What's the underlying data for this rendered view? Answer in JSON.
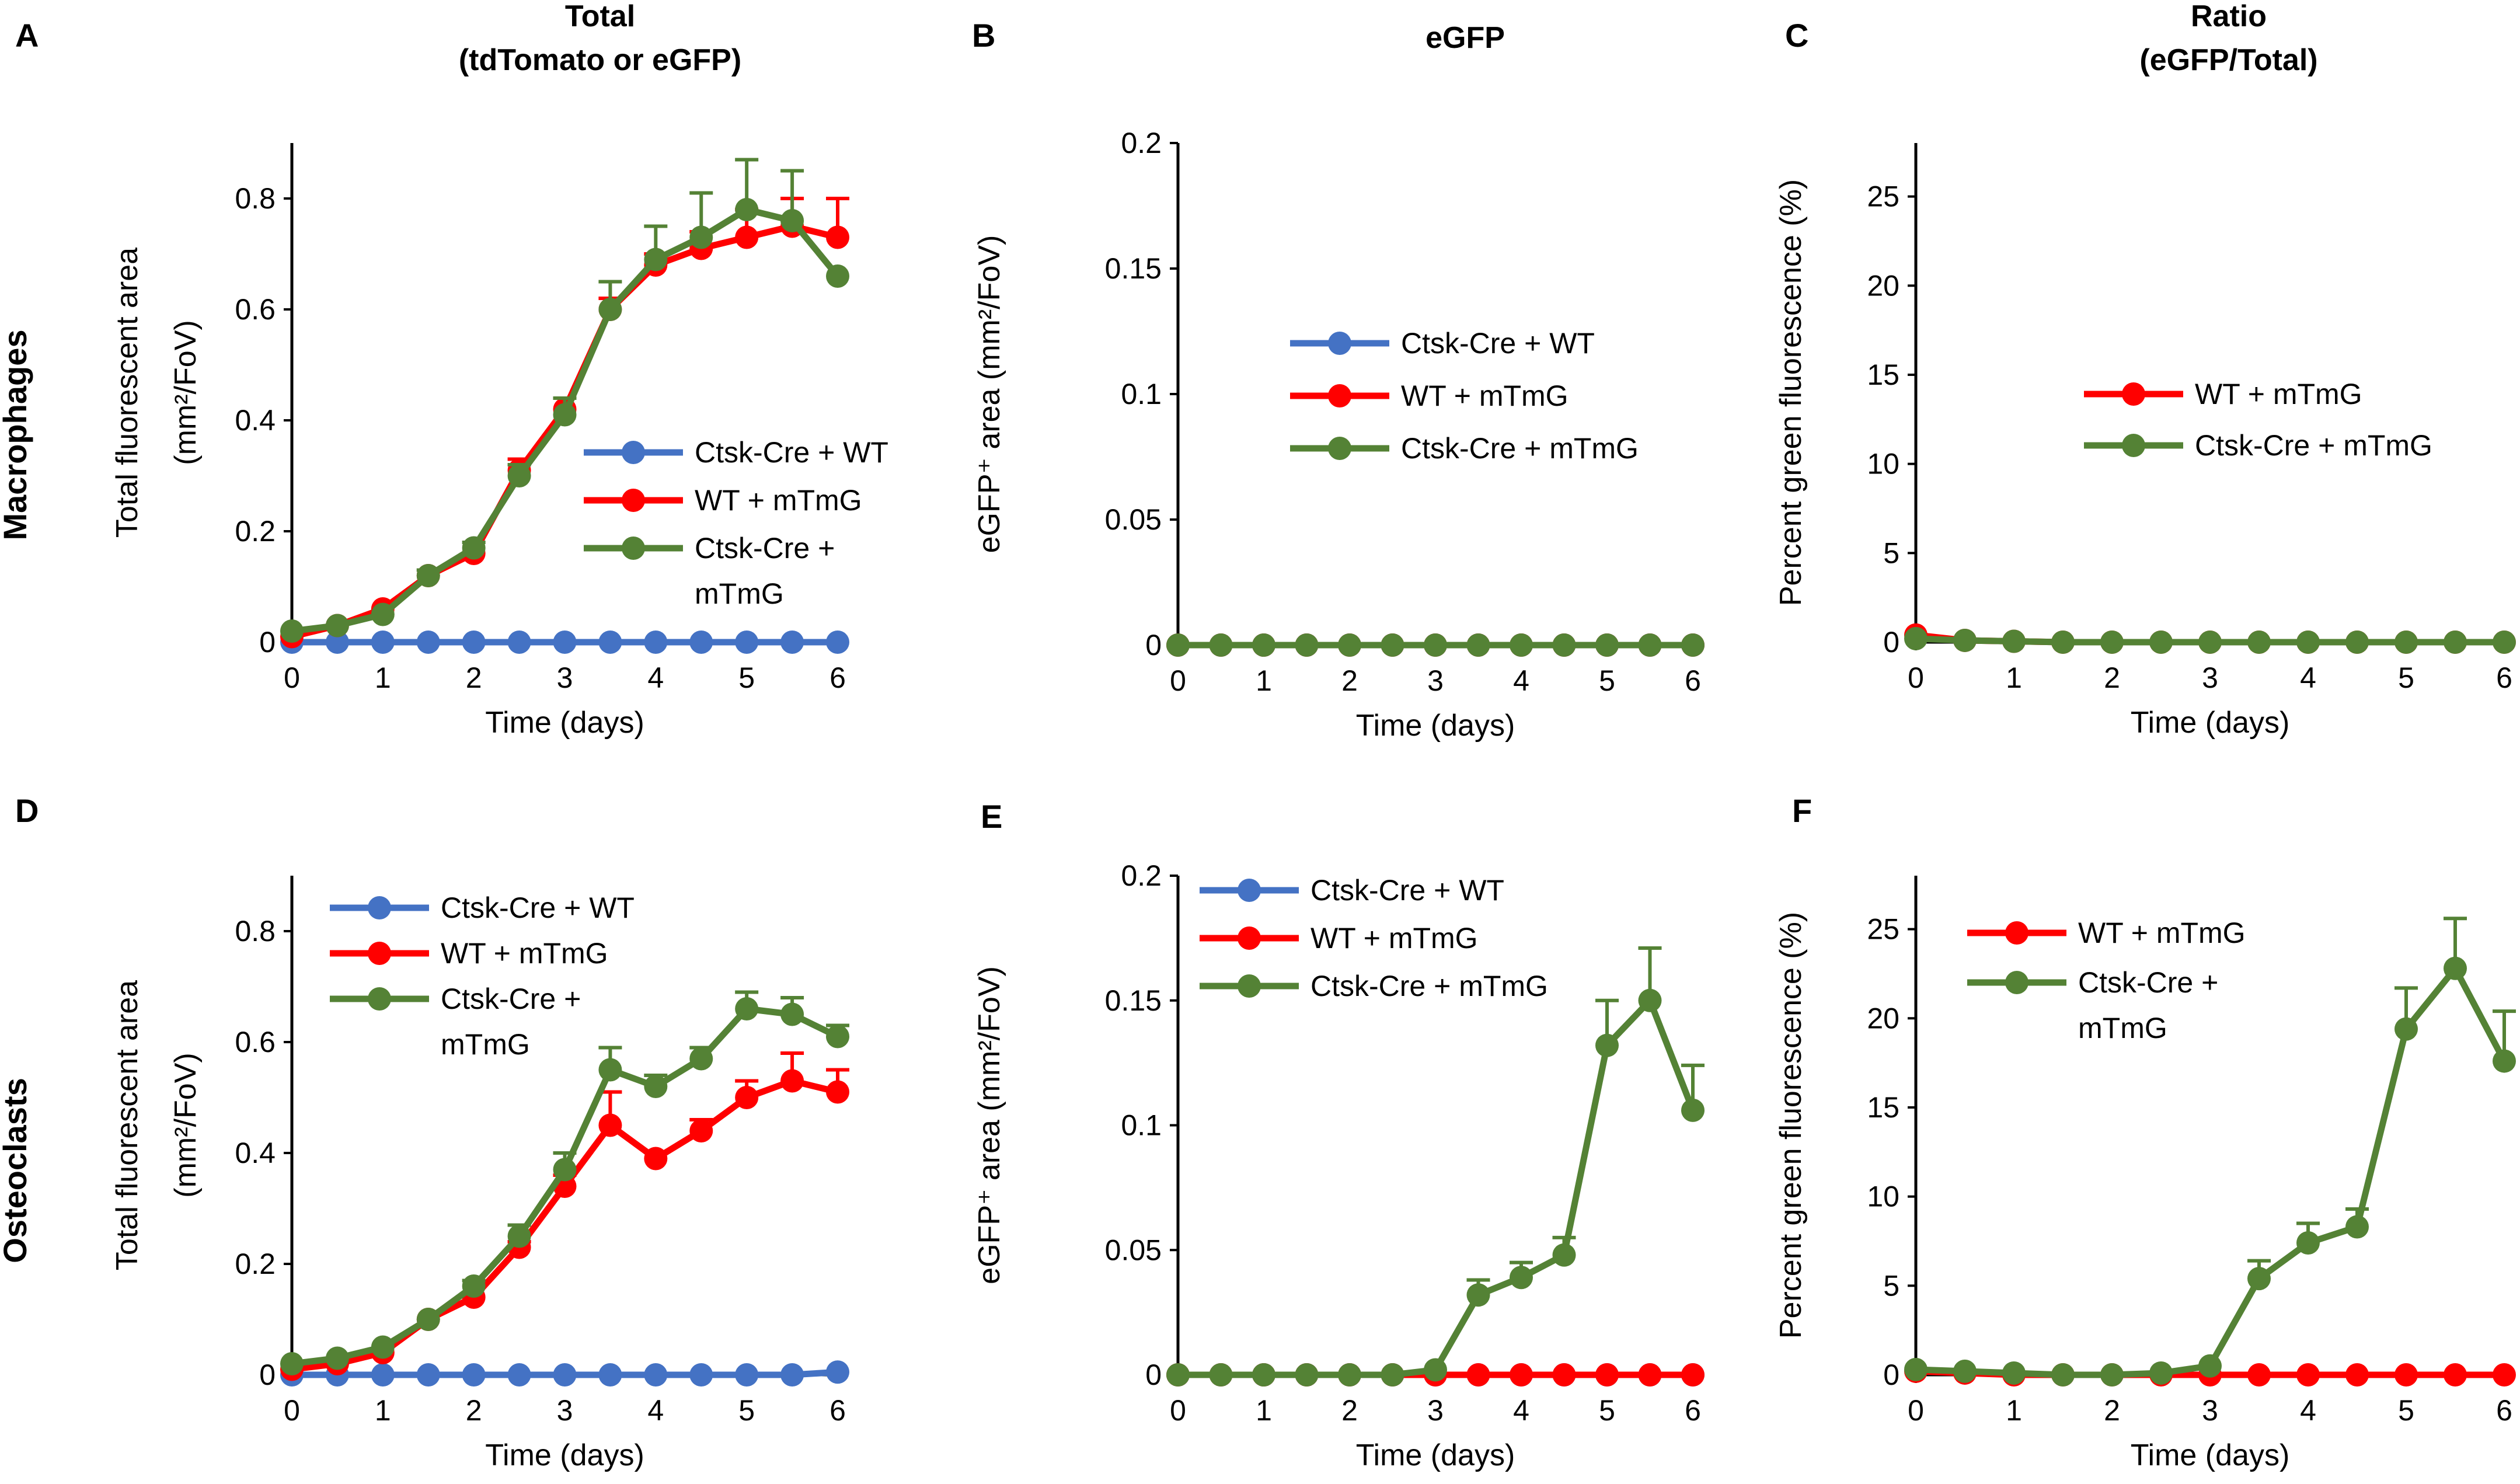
{
  "column_titles": {
    "total": [
      "Total",
      "(tdTomato or eGFP)"
    ],
    "egfp": [
      "eGFP"
    ],
    "ratio": [
      "Ratio",
      "(eGFP/Total)"
    ]
  },
  "row_labels": {
    "top": "Macrophages",
    "bottom": "Osteoclasts"
  },
  "colors": {
    "blue": "#4472C4",
    "red": "#FF0000",
    "green": "#548235"
  },
  "chart_data": [
    {
      "panel": "A",
      "type": "line",
      "row": "Macrophages",
      "column": "total",
      "xlabel": "Time (days)",
      "ylabel_lines": [
        "Total fluorescent area",
        "(mm²/FoV)"
      ],
      "xlim": [
        0,
        6
      ],
      "xticks": [
        "0",
        "1",
        "2",
        "3",
        "4",
        "5",
        "6"
      ],
      "ylim": [
        0,
        0.9
      ],
      "yticks": [
        "0",
        "0.2",
        "0.4",
        "0.6",
        "0.8"
      ],
      "ytick_values": [
        0,
        0.2,
        0.4,
        0.6,
        0.8
      ],
      "legend_position": "center-right",
      "x": [
        0,
        0.5,
        1,
        1.5,
        2,
        2.5,
        3,
        3.5,
        4,
        4.5,
        5,
        5.5,
        6
      ],
      "series": [
        {
          "name_lines": [
            "Ctsk-Cre + WT"
          ],
          "color": "blue",
          "values": [
            0,
            0,
            0,
            0,
            0,
            0,
            0,
            0,
            0,
            0,
            0,
            0,
            0
          ],
          "errors": [
            0,
            0,
            0,
            0,
            0,
            0,
            0,
            0,
            0,
            0,
            0,
            0,
            0
          ]
        },
        {
          "name_lines": [
            "WT + mTmG"
          ],
          "color": "red",
          "values": [
            0.01,
            0.03,
            0.06,
            0.12,
            0.16,
            0.31,
            0.42,
            0.6,
            0.68,
            0.71,
            0.73,
            0.75,
            0.73
          ],
          "errors": [
            0,
            0,
            0,
            0,
            0,
            0.02,
            0.02,
            0.02,
            0.02,
            0.03,
            0.05,
            0.05,
            0.07
          ]
        },
        {
          "name_lines": [
            "Ctsk-Cre +",
            "mTmG"
          ],
          "color": "green",
          "values": [
            0.02,
            0.03,
            0.05,
            0.12,
            0.17,
            0.3,
            0.41,
            0.6,
            0.69,
            0.73,
            0.78,
            0.76,
            0.66
          ],
          "errors": [
            0,
            0,
            0,
            0.01,
            0.01,
            0.02,
            0.03,
            0.05,
            0.06,
            0.08,
            0.09,
            0.09,
            0
          ]
        }
      ]
    },
    {
      "panel": "B",
      "type": "line",
      "row": "Macrophages",
      "column": "egfp",
      "xlabel": "Time (days)",
      "ylabel_lines": [
        "eGFP⁺ area (mm²/FoV)"
      ],
      "xlim": [
        0,
        6
      ],
      "xticks": [
        "0",
        "1",
        "2",
        "3",
        "4",
        "5",
        "6"
      ],
      "ylim": [
        0,
        0.2
      ],
      "yticks": [
        "0",
        "0.05",
        "0.1",
        "0.15",
        "0.2"
      ],
      "ytick_values": [
        0,
        0.05,
        0.1,
        0.15,
        0.2
      ],
      "legend_position": "center",
      "x": [
        0,
        0.5,
        1,
        1.5,
        2,
        2.5,
        3,
        3.5,
        4,
        4.5,
        5,
        5.5,
        6
      ],
      "series": [
        {
          "name_lines": [
            "Ctsk-Cre + WT"
          ],
          "color": "blue",
          "values": [
            0,
            0,
            0,
            0,
            0,
            0,
            0,
            0,
            0,
            0,
            0,
            0,
            0
          ],
          "errors": [
            0,
            0,
            0,
            0,
            0,
            0,
            0,
            0,
            0,
            0,
            0,
            0,
            0
          ]
        },
        {
          "name_lines": [
            "WT + mTmG"
          ],
          "color": "red",
          "values": [
            0,
            0,
            0,
            0,
            0,
            0,
            0,
            0,
            0,
            0,
            0,
            0,
            0
          ],
          "errors": [
            0,
            0,
            0,
            0,
            0,
            0,
            0,
            0,
            0,
            0,
            0,
            0,
            0
          ]
        },
        {
          "name_lines": [
            "Ctsk-Cre + mTmG"
          ],
          "color": "green",
          "values": [
            0,
            0,
            0,
            0,
            0,
            0,
            0,
            0,
            0,
            0,
            0,
            0,
            0
          ],
          "errors": [
            0,
            0,
            0,
            0,
            0,
            0,
            0,
            0,
            0,
            0,
            0,
            0,
            0
          ]
        }
      ]
    },
    {
      "panel": "C",
      "type": "line",
      "row": "Macrophages",
      "column": "ratio",
      "xlabel": "Time (days)",
      "ylabel_lines": [
        "Percent green fluorescence (%)"
      ],
      "xlim": [
        0,
        6
      ],
      "xticks": [
        "0",
        "1",
        "2",
        "3",
        "4",
        "5",
        "6"
      ],
      "ylim": [
        0,
        28
      ],
      "yticks": [
        "0",
        "5",
        "10",
        "15",
        "20",
        "25"
      ],
      "ytick_values": [
        0,
        5,
        10,
        15,
        20,
        25
      ],
      "legend_position": "center-right",
      "x": [
        0,
        0.5,
        1,
        1.5,
        2,
        2.5,
        3,
        3.5,
        4,
        4.5,
        5,
        5.5,
        6
      ],
      "series": [
        {
          "name_lines": [
            "WT + mTmG"
          ],
          "color": "red",
          "values": [
            0.4,
            0.1,
            0.05,
            0,
            0,
            0,
            0,
            0,
            0,
            0,
            0,
            0,
            0
          ],
          "errors": [
            0,
            0,
            0,
            0,
            0,
            0,
            0,
            0,
            0,
            0,
            0,
            0,
            0
          ]
        },
        {
          "name_lines": [
            "Ctsk-Cre + mTmG"
          ],
          "color": "green",
          "values": [
            0.2,
            0.1,
            0.05,
            0,
            0,
            0,
            0,
            0,
            0,
            0,
            0,
            0,
            0
          ],
          "errors": [
            0,
            0,
            0,
            0,
            0,
            0,
            0,
            0,
            0,
            0,
            0,
            0,
            0
          ]
        }
      ]
    },
    {
      "panel": "D",
      "type": "line",
      "row": "Osteoclasts",
      "column": "total",
      "xlabel": "Time (days)",
      "ylabel_lines": [
        "Total fluorescent area",
        "(mm²/FoV)"
      ],
      "xlim": [
        0,
        6
      ],
      "xticks": [
        "0",
        "1",
        "2",
        "3",
        "4",
        "5",
        "6"
      ],
      "ylim": [
        0,
        0.9
      ],
      "yticks": [
        "0",
        "0.2",
        "0.4",
        "0.6",
        "0.8"
      ],
      "ytick_values": [
        0,
        0.2,
        0.4,
        0.6,
        0.8
      ],
      "legend_position": "top-left",
      "x": [
        0,
        0.5,
        1,
        1.5,
        2,
        2.5,
        3,
        3.5,
        4,
        4.5,
        5,
        5.5,
        6
      ],
      "series": [
        {
          "name_lines": [
            "Ctsk-Cre + WT"
          ],
          "color": "blue",
          "values": [
            0,
            0,
            0,
            0,
            0,
            0,
            0,
            0,
            0,
            0,
            0,
            0,
            0.005
          ],
          "errors": [
            0,
            0,
            0,
            0,
            0,
            0,
            0,
            0,
            0,
            0,
            0,
            0,
            0
          ]
        },
        {
          "name_lines": [
            "WT + mTmG"
          ],
          "color": "red",
          "values": [
            0.01,
            0.02,
            0.04,
            0.1,
            0.14,
            0.23,
            0.34,
            0.45,
            0.39,
            0.44,
            0.5,
            0.53,
            0.51
          ],
          "errors": [
            0,
            0,
            0,
            0,
            0,
            0.01,
            0.02,
            0.06,
            0,
            0.02,
            0.03,
            0.05,
            0.04
          ]
        },
        {
          "name_lines": [
            "Ctsk-Cre +",
            "mTmG"
          ],
          "color": "green",
          "values": [
            0.02,
            0.03,
            0.05,
            0.1,
            0.16,
            0.25,
            0.37,
            0.55,
            0.52,
            0.57,
            0.66,
            0.65,
            0.61
          ],
          "errors": [
            0,
            0,
            0,
            0,
            0.01,
            0.02,
            0.03,
            0.04,
            0.02,
            0.02,
            0.03,
            0.03,
            0.02
          ]
        }
      ]
    },
    {
      "panel": "E",
      "type": "line",
      "row": "Osteoclasts",
      "column": "egfp",
      "xlabel": "Time (days)",
      "ylabel_lines": [
        "eGFP⁺ area (mm²/FoV)"
      ],
      "xlim": [
        0,
        6
      ],
      "xticks": [
        "0",
        "1",
        "2",
        "3",
        "4",
        "5",
        "6"
      ],
      "ylim": [
        0,
        0.2
      ],
      "yticks": [
        "0",
        "0.05",
        "0.1",
        "0.15",
        "0.2"
      ],
      "ytick_values": [
        0,
        0.05,
        0.1,
        0.15,
        0.2
      ],
      "legend_position": "top-left",
      "x": [
        0,
        0.5,
        1,
        1.5,
        2,
        2.5,
        3,
        3.5,
        4,
        4.5,
        5,
        5.5,
        6
      ],
      "series": [
        {
          "name_lines": [
            "Ctsk-Cre + WT"
          ],
          "color": "blue",
          "values": [
            0,
            0,
            0,
            0,
            0,
            0,
            0,
            0,
            0,
            0,
            0,
            0,
            0
          ],
          "errors": [
            0,
            0,
            0,
            0,
            0,
            0,
            0,
            0,
            0,
            0,
            0,
            0,
            0
          ]
        },
        {
          "name_lines": [
            "WT + mTmG"
          ],
          "color": "red",
          "values": [
            0,
            0,
            0,
            0,
            0,
            0,
            0,
            0,
            0,
            0,
            0,
            0,
            0
          ],
          "errors": [
            0,
            0,
            0,
            0,
            0,
            0,
            0,
            0,
            0,
            0,
            0,
            0,
            0
          ]
        },
        {
          "name_lines": [
            "Ctsk-Cre + mTmG"
          ],
          "color": "green",
          "values": [
            0,
            0,
            0,
            0,
            0,
            0,
            0.002,
            0.032,
            0.039,
            0.048,
            0.132,
            0.15,
            0.106
          ],
          "errors": [
            0,
            0,
            0,
            0,
            0,
            0,
            0,
            0.006,
            0.006,
            0.007,
            0.018,
            0.021,
            0.018
          ]
        }
      ]
    },
    {
      "panel": "F",
      "type": "line",
      "row": "Osteoclasts",
      "column": "ratio",
      "xlabel": "Time (days)",
      "ylabel_lines": [
        "Percent green fluorescence (%)"
      ],
      "xlim": [
        0,
        6
      ],
      "xticks": [
        "0",
        "1",
        "2",
        "3",
        "4",
        "5",
        "6"
      ],
      "ylim": [
        0,
        28
      ],
      "yticks": [
        "0",
        "5",
        "10",
        "15",
        "20",
        "25"
      ],
      "ytick_values": [
        0,
        5,
        10,
        15,
        20,
        25
      ],
      "legend_position": "top-left",
      "x": [
        0,
        0.5,
        1,
        1.5,
        2,
        2.5,
        3,
        3.5,
        4,
        4.5,
        5,
        5.5,
        6
      ],
      "series": [
        {
          "name_lines": [
            "WT + mTmG"
          ],
          "color": "red",
          "values": [
            0.2,
            0.1,
            0,
            0,
            0,
            0,
            0,
            0,
            0,
            0,
            0,
            0,
            0
          ],
          "errors": [
            0,
            0,
            0,
            0,
            0,
            0,
            0,
            0,
            0,
            0,
            0,
            0,
            0
          ]
        },
        {
          "name_lines": [
            "Ctsk-Cre +",
            "mTmG"
          ],
          "color": "green",
          "values": [
            0.3,
            0.2,
            0.1,
            0,
            0,
            0.1,
            0.5,
            5.4,
            7.4,
            8.3,
            19.4,
            22.8,
            17.6
          ],
          "errors": [
            0,
            0,
            0,
            0,
            0,
            0,
            0,
            1.0,
            1.1,
            1.0,
            2.3,
            2.8,
            2.8
          ]
        }
      ]
    }
  ]
}
